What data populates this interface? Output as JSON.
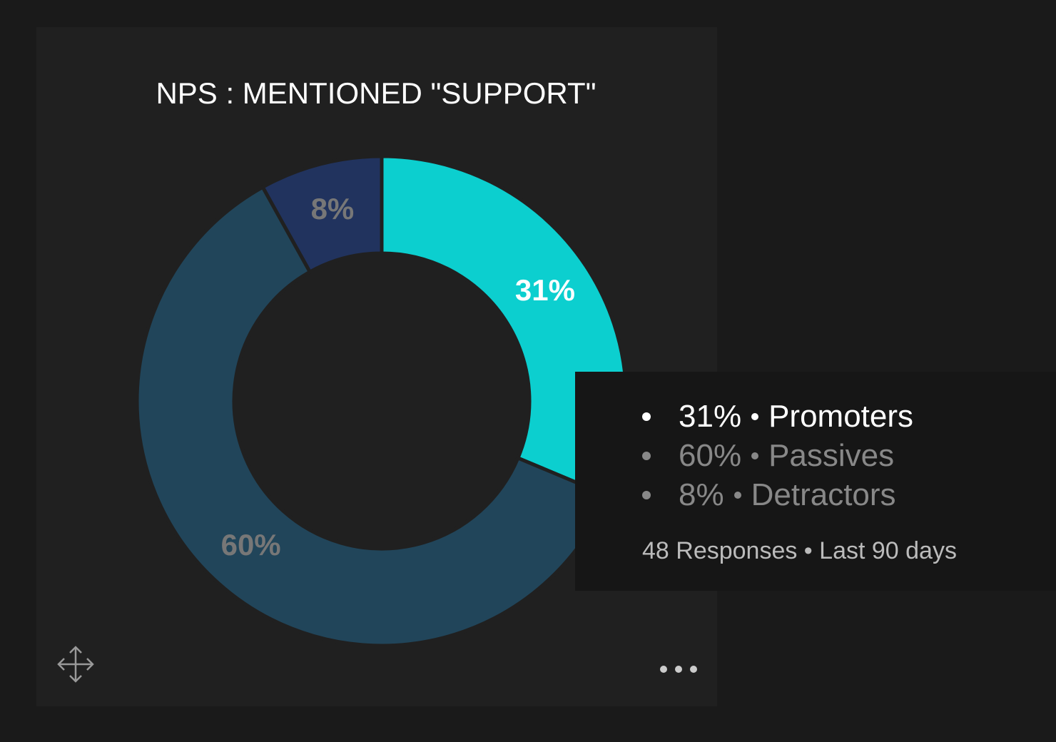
{
  "chart_data": {
    "type": "pie",
    "donut": true,
    "title": "NPS : MENTIONED \"SUPPORT\"",
    "categories": [
      "Promoters",
      "Passives",
      "Detractors"
    ],
    "values": [
      31,
      60,
      8
    ],
    "value_labels": [
      "31%",
      "60%",
      "8%"
    ],
    "colors": [
      "#0ccfcf",
      "#21455a",
      "#21335e"
    ],
    "footer": "48 Responses • Last 90 days"
  }
}
